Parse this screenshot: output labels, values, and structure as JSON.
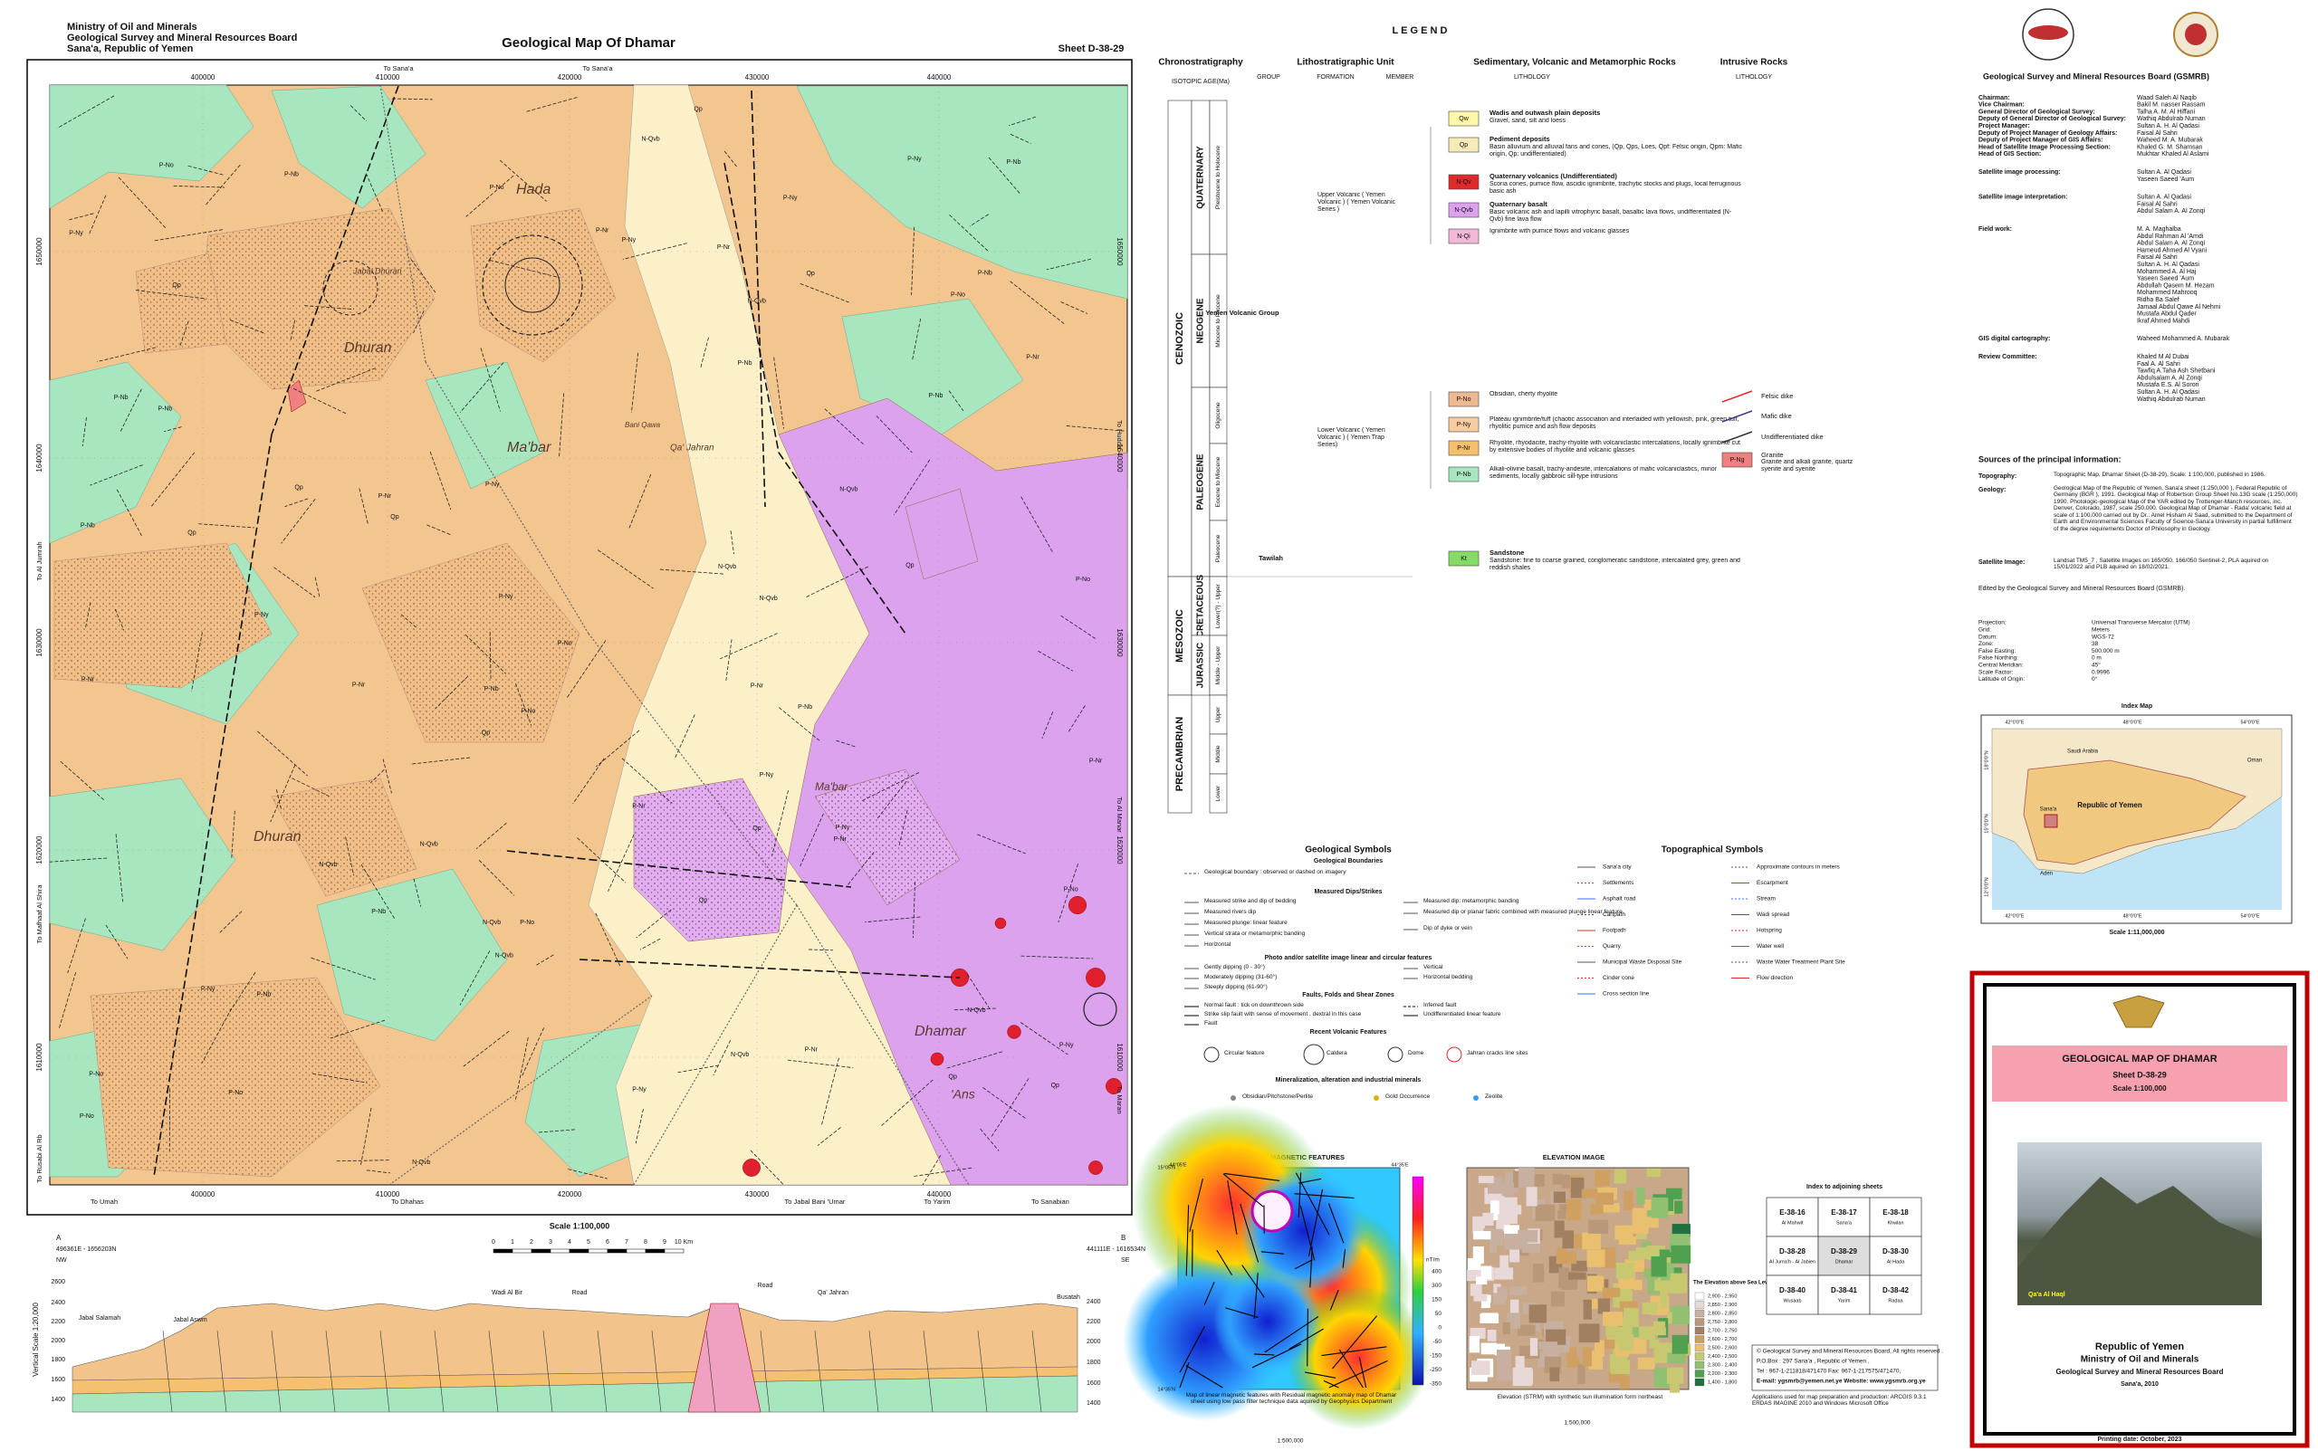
{
  "header": {
    "org": [
      "Ministry of Oil and Minerals",
      "Geological Survey and Mineral Resources Board",
      "Sana'a, Republic of Yemen"
    ],
    "title": "Geological Map Of Dhamar",
    "sheet": "Sheet D-38-29"
  },
  "map": {
    "eastings": [
      "400000",
      "410000",
      "420000",
      "430000",
      "440000"
    ],
    "northings": [
      "1650000",
      "1640000",
      "1630000",
      "1620000",
      "1610000"
    ],
    "margin_labels": [
      "To Sana'a",
      "To Sana'a",
      "To Umah",
      "To Dhahas",
      "To Jabal Bani 'Umar",
      "To Yarim",
      "To Sanabian",
      "To Al Jumrah",
      "To Mafhaaf Al Shira",
      "To Rusabi Al Rb",
      "To Hudda",
      "To Al Manar",
      "To Maran"
    ],
    "places": [
      "Dhuran",
      "Jabal Dhuran",
      "Ma'bar",
      "Qa' Jahran",
      "Dhamar",
      "'Ans",
      "Hada",
      "Bani Qawa",
      "Dhuran",
      "Ma'bar"
    ]
  },
  "cross_section": {
    "ends": [
      "A",
      "B"
    ],
    "coords": [
      "496361E - 1656203N",
      "441111E - 1616534N"
    ],
    "dirs": [
      "NW",
      "SE"
    ],
    "elev_left": [
      "2600",
      "2400",
      "2200",
      "2000",
      "1800",
      "1600",
      "1400"
    ],
    "elev_right": [
      "2400",
      "2200",
      "2000",
      "1800",
      "1600",
      "1400"
    ],
    "vertical_scale": "Vertical Scale 1:20,000",
    "horizontal_scale": "Horizontal Scale 1:100,000",
    "scale": "Scale 1:100,000",
    "scale_ticks": [
      "0",
      "1",
      "2",
      "3",
      "4",
      "5",
      "6",
      "7",
      "8",
      "9",
      "10 Km"
    ],
    "labels": [
      "Jabal Salamah",
      "Jabal Aswm",
      "Wadi Al Bir",
      "Road",
      "Road",
      "Qa' Jahran",
      "Busatah"
    ]
  },
  "legend": {
    "title": "L E G E N D",
    "chrono_title": "Chronostratigraphy",
    "chrono_sub": "ISOTOPIC AGE(Ma)",
    "litho_title": "Lithostratigraphic Unit",
    "litho_cols": [
      "GROUP",
      "FORMATION",
      "MEMBER"
    ],
    "sed_title": "Sedimentary, Volcanic  and Metamorphic Rocks",
    "sed_sub": "LITHOLOGY",
    "intr_title": "Intrusive Rocks",
    "intr_sub": "LITHOLOGY",
    "eras": [
      "CENOZOIC",
      "MESOZOIC",
      "PRECAMBRIAN"
    ],
    "periods": [
      "QUATERNARY",
      "NEOGENE",
      "PALEOGENE",
      "CRETACEOUS",
      "JURASSIC"
    ],
    "epochs": [
      "Pleistocene to Holocene",
      "Miocene to Pliocene",
      "Oligocene",
      "Eocene to Miocene",
      "Paleocene",
      "Lower(?) - Upper",
      "Middle - Upper",
      "Upper",
      "Middle",
      "Lower"
    ],
    "groups": [
      "Yemen Volcanic Group",
      "Tawilah"
    ],
    "formations": [
      "Upper Volcanic ( Yemen Volcanic ) ( Yemen Volcanic Series )",
      "Lower Volcanic ( Yemen Volcanic ) ( Yemen Trap Series)"
    ],
    "units": [
      {
        "code": "Qw",
        "name": "Wadis and outwash plain deposits",
        "desc": "Gravel, sand, silt and loess"
      },
      {
        "code": "Qp",
        "name": "Pediment deposits",
        "desc": "Basin alluvium and alluvial fans and cones, (Qp, Qps, Loes, Qpf: Felsic origin, Qpm: Mafic origin, Qp: undifferentiated)"
      },
      {
        "code": "N-Qv",
        "name": "Quaternary volcanics (Undifferentiated)",
        "desc": "Scoria cones, pumice flow, ascidic ignimbrite, trachytic stocks and plugs, local ferruginous basic ash"
      },
      {
        "code": "N-Qvb",
        "name": "Quaternary basalt",
        "desc": "Basic volcanic ash and lapilli vitrophyric basalt, basaltic lava flows, undifferentiated (N-Qvb) fine lava flow"
      },
      {
        "code": "N-Qi",
        "desc": "Ignimbrite with pumice flows and volcanic glasses"
      },
      {
        "code": "P-No",
        "desc": "Obsidian, cherty rhyolite"
      },
      {
        "code": "P-Ny",
        "desc": "Plateau ignimbrite/tuff (chaotic association and interlaided with yellowish, pink, green tuff, rhyolitic pumice and ash flow deposits"
      },
      {
        "code": "P-Nr",
        "desc": "Rhyolite, rhyodacite, trachy-rhyolite with volcaniclastic intercalations, locally ignimbrite cut by extensive bodies of rhyolite and volcanic glasses"
      },
      {
        "code": "P-Nb",
        "desc": "Alkali-olivine basalt, trachy-andesite, intercalations of mafic volcaniclastics, minor sediments, locally gabbroic sill-type intrusions"
      },
      {
        "code": "Kt",
        "name": "Sandstone",
        "desc": "Sandstone: fine to coarse grained, conglomeratic sandstone, intercalated grey, green and reddish shales"
      }
    ],
    "intrusive": [
      {
        "name": "Felsic dike"
      },
      {
        "name": "Mafic dike"
      },
      {
        "name": "Undifferentiated dike"
      },
      {
        "code": "P-Ng",
        "name": "Granite",
        "desc": "Granite and alkali granite, quartz syenite and syenite"
      }
    ]
  },
  "geo_symbols": {
    "title": "Geological Symbols",
    "headings": [
      "Geological Boundaries",
      "Measured Dips/Strikes",
      "Photo and/or satellite image linear and circular features",
      "Faults, Folds and Shear Zones",
      "Recent Volcanic Features",
      "Mineralization, alteration and industrial minerals"
    ],
    "items": [
      "Geological boundary : observed or dashed on imagery",
      "Measured strike and dip of bedding",
      "Measured rivers dip",
      "Measured plunge: linear feature",
      "Vertical strata or metamorphic banding",
      "Horizontal",
      "Measured dip: metamorphic banding",
      "Measured dip or planar fabric combined with measured plunge linear feature",
      "Dip of dyke or vein",
      "Gently dipping (0 - 30°)",
      "Moderately dipping (31-60°)",
      "Steeply dipping (61-90°)",
      "Vertical",
      "Horizontal bedding",
      "Normal fault : tick on downthrown side",
      "Strike slip fault with sense of movement , dextral in this case",
      "Fault",
      "Inferred fault",
      "Undifferentiated linear feature",
      "Circular feature",
      "Caldera",
      "Dome",
      "Jahran cracks line sites",
      "Obsidian/Pitchstone/Perlite",
      "Gold Occurrence",
      "Zeolite"
    ]
  },
  "topo_symbols": {
    "title": "Topographical Symbols",
    "items": [
      "Sana'a city",
      "Settlements",
      "Asphalt road",
      "Cartpath",
      "Footpath",
      "Quarry",
      "Municipal Waste Disposal Site",
      "Cinder cone",
      "Cross section line",
      "Approximate contours in meters",
      "Escarpment",
      "Stream",
      "Wadi spread",
      "Hotspring",
      "Water well",
      "Waste Water Treatment Plant Site",
      "Flow direction"
    ]
  },
  "magnetic": {
    "title": "LINEAR MAGNETIC FEATURES",
    "unit": "nT/m",
    "scale": [
      "400",
      "300",
      "150",
      "50",
      "0",
      "-50",
      "-150",
      "-250",
      "-350"
    ],
    "caption": "Map of linear magnetic features with Residual magnetic anomaly map of Dhamar sheet using low pass filter technique data aquired by Geophysics Department",
    "map_scale": "1:500,000",
    "corners": [
      "44°05'E",
      "44°35'E",
      "15°05'N",
      "14°35'N"
    ]
  },
  "elevation": {
    "title": "ELEVATION IMAGE",
    "legend_title": "The Elevation above Sea Level (Meter)",
    "classes": [
      "2,900 - 2,950",
      "2,850 - 2,900",
      "2,800 - 2,850",
      "2,750 - 2,800",
      "2,700 - 2,750",
      "2,600 - 2,700",
      "2,500 - 2,600",
      "2,400 - 2,500",
      "2,300 - 2,400",
      "2,200 - 2,300",
      "1,400 - 1,800"
    ],
    "caption": "Elevation (STRM) with synthetic sun illumination form northeast",
    "map_scale": "1:500,000"
  },
  "adjoining": {
    "title": "Index to adjoining sheets",
    "sheets": [
      {
        "code": "E-38-16",
        "name": "Al Mahwit"
      },
      {
        "code": "E-38-17",
        "name": "Sana'a"
      },
      {
        "code": "E-38-18",
        "name": "Khwlan"
      },
      {
        "code": "D-38-28",
        "name": "Al Juma'h - Al Jabien"
      },
      {
        "code": "D-38-29",
        "name": "Dhamar"
      },
      {
        "code": "D-38-30",
        "name": "Al Hada"
      },
      {
        "code": "D-38-40",
        "name": "Wusaab"
      },
      {
        "code": "D-38-41",
        "name": "Yarim"
      },
      {
        "code": "D-38-42",
        "name": "Radaa"
      }
    ]
  },
  "copyright": [
    "© Geological Survey and Mineral Resources Board, All rights reserved .",
    "P.O.Box : 297 Sana'a , Republic of Yemen ,",
    "Tel : 967-1-211818/471470 Fax: 967-1-217575/471470,",
    "E-mail: ygsmrb@yemen.net.ye Website: www.ygsmrb.org.ye",
    "Applications used for map preparation and production: ARCGIS 9.3.1 ERDAS IMAGINE 2010 and Windows Microsoft Office"
  ],
  "credits": {
    "title": "Geological Survey and Mineral Resources Board (GSMRB)",
    "sections": [
      [
        {
          "role": "Chairman:",
          "names": [
            "Waad Saleh Al Naqib"
          ]
        },
        {
          "role": "Vice Chairman:",
          "names": [
            "Bakil M. nasser Rassam"
          ]
        },
        {
          "role": "General Director of Geological Survey:",
          "names": [
            "Talha A. M. Al Hiffani"
          ]
        },
        {
          "role": "Deputy of General Director of Geological Survey:",
          "names": [
            "Wathiq Abdulrab Numan"
          ]
        },
        {
          "role": "Project Manager:",
          "names": [
            "Sultan A. H. Al Qadasi"
          ]
        },
        {
          "role": "Deputy of Project Manager of Geology Affairs:",
          "names": [
            "Faisal Al Sahri"
          ]
        },
        {
          "role": "Deputy of Project Manager of GIS Affairs:",
          "names": [
            "Waheed M. A. Mubarak"
          ]
        },
        {
          "role": "Head of Satellite Image Processing Section:",
          "names": [
            "Khaled G. M. Shamsan"
          ]
        },
        {
          "role": "Head of GIS Section:",
          "names": [
            "Mukhtar Khaled Al Aslami"
          ]
        }
      ],
      [
        {
          "role": "Satellite image processing:",
          "names": [
            "Sultan A. Al Qadasi",
            "Yaseen Saeed 'Aum"
          ]
        }
      ],
      [
        {
          "role": "Satellite image interpretation:",
          "names": [
            "Sultan A. Al Qadasi",
            "Faisal Al Sahri",
            "Abdul Salam A. Al Zonqi"
          ]
        }
      ],
      [
        {
          "role": "Field work:",
          "names": [
            "M. A. Maghalba",
            "Abdul Rahman Al 'Amdi",
            "Abdul Salam A. Al Zonqi",
            "Hameud Ahmed Al Vyani",
            "Faisal Al Sahri",
            "Sultan A. H. Al Qadasi",
            "Mohammed A. Al Haj",
            "Yaseen Saeed 'Aum",
            "Abdullah Qasem M. Hezam",
            "Mohammed Mahrooq",
            "Ridha Ba Salef",
            "Jamaal Abdul Qawe Al Nehmi",
            "Mustafa Abdul Qader",
            "Ikraf Ahmed Mahdi"
          ]
        }
      ],
      [
        {
          "role": "GIS digital cartography:",
          "names": [
            "Waheed Mohammed A. Mubarak"
          ]
        }
      ],
      [
        {
          "role": "Review Committee:",
          "names": [
            "Khaled M Al Dubai",
            "Faal A. Al Sahri",
            "Tawfiq A.Taha Ash Shetbani",
            "Abdulsalam A. Al Zonqi",
            "Mustafa E.S. Al Sorori",
            "Sultan A. H. Al Qadasi",
            "Wathiq Abdulrab Numan"
          ]
        }
      ]
    ]
  },
  "sources": {
    "title": "Sources of the principal information:",
    "items": [
      {
        "label": "Topography:",
        "text": "Topographic Map, Dhamar Sheet (D-38-29), Scale: 1:100,000, published in 1986."
      },
      {
        "label": "Geology:",
        "text": "Geological Map of the Republic of Yemen, Sana'a sheet (1:250,000 ), Federal Republic of Germany (BGR ), 1991. Geological Map of Robertson Group Sheet No.13G scale (1:250,000) 1990. Photologic-geological Map of the YAR edited by Trottenger-Manch resources, inc. Denver, Colorado, 1987, scale 250,000. Geological Map of Dhamar - Rada' volcanic field at scale of 1:100.000 carried out by Dr.: Amel Hisham Al Saad, submitted to the Department of Earth and Environmental Sciences Faculty of Science-Sana'a University in partial fulfillment of the degree requirements Doctor of Philosophy in Geology."
      },
      {
        "label": "Satellite Image:",
        "text": "Landsat TM5_7 , Satellite Images on 165/050, 166/050 Sentinel-2, PLA aquired on 15/01/2022 and PLB aquired on 18/02/2021."
      }
    ],
    "edited": "Edited by the Geological Survey and Mineral Resources Board (GSMRB)."
  },
  "projection": [
    {
      "label": "Projection:",
      "value": "Universal Transverse Mercator (UTM)"
    },
    {
      "label": "Grid:",
      "value": "Meters"
    },
    {
      "label": "Datum:",
      "value": "WGS-72"
    },
    {
      "label": "Zone:",
      "value": "38"
    },
    {
      "label": "False Easting:",
      "value": "500.000 m"
    },
    {
      "label": "False Northing:",
      "value": "0 m"
    },
    {
      "label": "Central Meridian:",
      "value": "45°"
    },
    {
      "label": "Scale Factor:",
      "value": "0.9996"
    },
    {
      "label": "Latitude of Origin:",
      "value": "0°"
    }
  ],
  "index_map": {
    "title": "Index Map",
    "labels": [
      "Saudi Arabia",
      "Oman",
      "Republic of Yemen",
      "Aden",
      "Sana'a"
    ],
    "lons": [
      "42°0'0\"E",
      "48°0'0\"E",
      "54°0'0\"E"
    ],
    "lats": [
      "18°0'0\"N",
      "15°0'0\"N",
      "12°0'0\"N"
    ],
    "scale": "Scale 1:11,000,000"
  },
  "title_block": {
    "title": "GEOLOGICAL MAP OF DHAMAR",
    "sheet": "Sheet D-38-29",
    "scale": "Scale 1:100,000",
    "photo_caption": "Qa'a Al Haql",
    "country": "Republic of Yemen",
    "ministry": "Ministry of Oil and Minerals",
    "board": "Geological Survey and Mineral Resources Board",
    "place_year": "Sana'a, 2010",
    "printing": "Printing date: October, 2023"
  }
}
